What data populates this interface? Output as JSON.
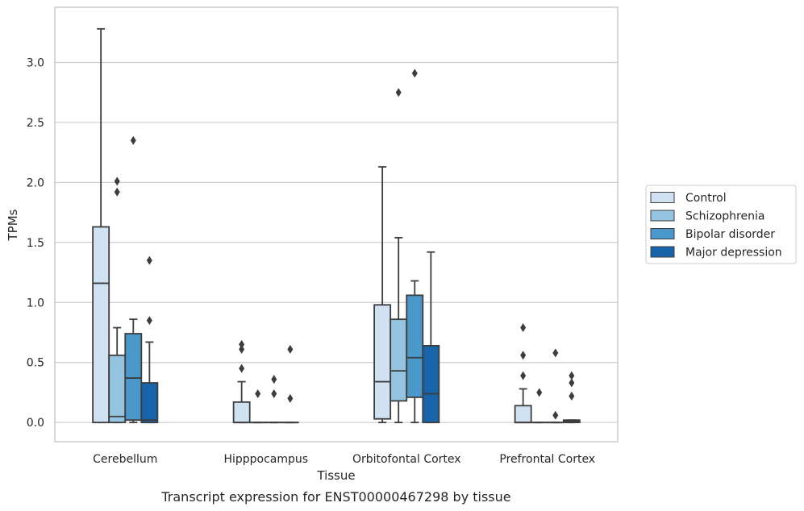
{
  "chart_data": {
    "type": "box",
    "title": "",
    "xlabel": "Tissue",
    "ylabel": "TPMs",
    "caption": "Transcript expression for ENST00000467298 by tissue",
    "categories": [
      "Cerebellum",
      "Hipppocampus",
      "Orbitofontal Cortex",
      "Prefrontal Cortex"
    ],
    "ylim": [
      -0.16,
      3.46
    ],
    "yticks": [
      "0.0",
      "0.5",
      "1.0",
      "1.5",
      "2.0",
      "2.5",
      "3.0"
    ],
    "grid": true,
    "legend_position": "right",
    "series": [
      {
        "name": "Control",
        "color": "#d0e1f2",
        "boxes": [
          {
            "q1": 0.0,
            "median": 1.16,
            "q3": 1.63,
            "whislo": 0.0,
            "whishi": 3.28,
            "fliers": []
          },
          {
            "q1": 0.0,
            "median": 0.0,
            "q3": 0.17,
            "whislo": 0.0,
            "whishi": 0.34,
            "fliers": [
              0.45,
              0.61,
              0.65
            ]
          },
          {
            "q1": 0.03,
            "median": 0.34,
            "q3": 0.98,
            "whislo": 0.0,
            "whishi": 2.13,
            "fliers": []
          },
          {
            "q1": 0.0,
            "median": 0.0,
            "q3": 0.14,
            "whislo": 0.0,
            "whishi": 0.28,
            "fliers": [
              0.39,
              0.56,
              0.79
            ]
          }
        ]
      },
      {
        "name": "Schizophrenia",
        "color": "#94c4df",
        "boxes": [
          {
            "q1": 0.0,
            "median": 0.05,
            "q3": 0.56,
            "whislo": 0.0,
            "whishi": 0.79,
            "fliers": [
              1.92,
              2.01
            ]
          },
          {
            "q1": 0.0,
            "median": 0.0,
            "q3": 0.0,
            "whislo": 0.0,
            "whishi": 0.0,
            "fliers": [
              0.24
            ]
          },
          {
            "q1": 0.18,
            "median": 0.43,
            "q3": 0.86,
            "whislo": 0.0,
            "whishi": 1.54,
            "fliers": [
              2.75
            ]
          },
          {
            "q1": 0.0,
            "median": 0.0,
            "q3": 0.0,
            "whislo": 0.0,
            "whishi": 0.0,
            "fliers": [
              0.25
            ]
          }
        ]
      },
      {
        "name": "Bipolar disorder",
        "color": "#4a98c9",
        "boxes": [
          {
            "q1": 0.02,
            "median": 0.37,
            "q3": 0.74,
            "whislo": 0.0,
            "whishi": 0.86,
            "fliers": [
              2.35
            ]
          },
          {
            "q1": 0.0,
            "median": 0.0,
            "q3": 0.0,
            "whislo": 0.0,
            "whishi": 0.0,
            "fliers": [
              0.24,
              0.36
            ]
          },
          {
            "q1": 0.21,
            "median": 0.54,
            "q3": 1.06,
            "whislo": 0.0,
            "whishi": 1.18,
            "fliers": [
              2.91
            ]
          },
          {
            "q1": 0.0,
            "median": 0.0,
            "q3": 0.0,
            "whislo": 0.0,
            "whishi": 0.0,
            "fliers": [
              0.06,
              0.58
            ]
          }
        ]
      },
      {
        "name": "Major depression",
        "color": "#1764ab",
        "boxes": [
          {
            "q1": 0.0,
            "median": 0.02,
            "q3": 0.33,
            "whislo": 0.0,
            "whishi": 0.67,
            "fliers": [
              0.85,
              1.35
            ]
          },
          {
            "q1": 0.0,
            "median": 0.0,
            "q3": 0.0,
            "whislo": 0.0,
            "whishi": 0.0,
            "fliers": [
              0.2,
              0.61
            ]
          },
          {
            "q1": 0.0,
            "median": 0.24,
            "q3": 0.64,
            "whislo": 0.0,
            "whishi": 1.42,
            "fliers": []
          },
          {
            "q1": 0.0,
            "median": 0.01,
            "q3": 0.02,
            "whislo": 0.0,
            "whishi": 0.02,
            "fliers": [
              0.22,
              0.33,
              0.39
            ]
          }
        ]
      }
    ]
  }
}
